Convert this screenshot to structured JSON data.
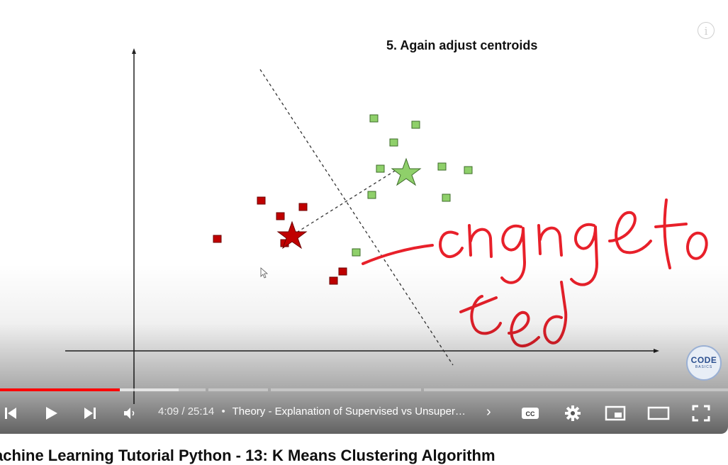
{
  "slide": {
    "title": "5. Again adjust centroids",
    "handwritten_note": "change to red"
  },
  "logo": {
    "line1": "CODE",
    "line2": "BASICS"
  },
  "player": {
    "current_time": "4:09",
    "duration": "25:14",
    "separator": "•",
    "chapter_title": "Theory - Explanation of Supervised vs Unsuper…",
    "chapter_arrow": "›",
    "progress_fraction": 0.165,
    "colors": {
      "progress": "#ff0000",
      "note_ink": "#e8202a",
      "cluster_red": "#c00000",
      "cluster_green": "#8fd06a"
    }
  },
  "controls": {
    "prev_icon": "skip-previous-icon",
    "play_icon": "play-icon",
    "next_icon": "skip-next-icon",
    "volume_icon": "volume-icon",
    "captions_icon": "captions-icon",
    "settings_icon": "gear-icon",
    "miniplayer_icon": "miniplayer-icon",
    "theater_icon": "theater-mode-icon",
    "fullscreen_icon": "fullscreen-icon"
  },
  "video": {
    "title": "achine Learning Tutorial Python - 13: K Means Clustering Algorithm"
  }
}
